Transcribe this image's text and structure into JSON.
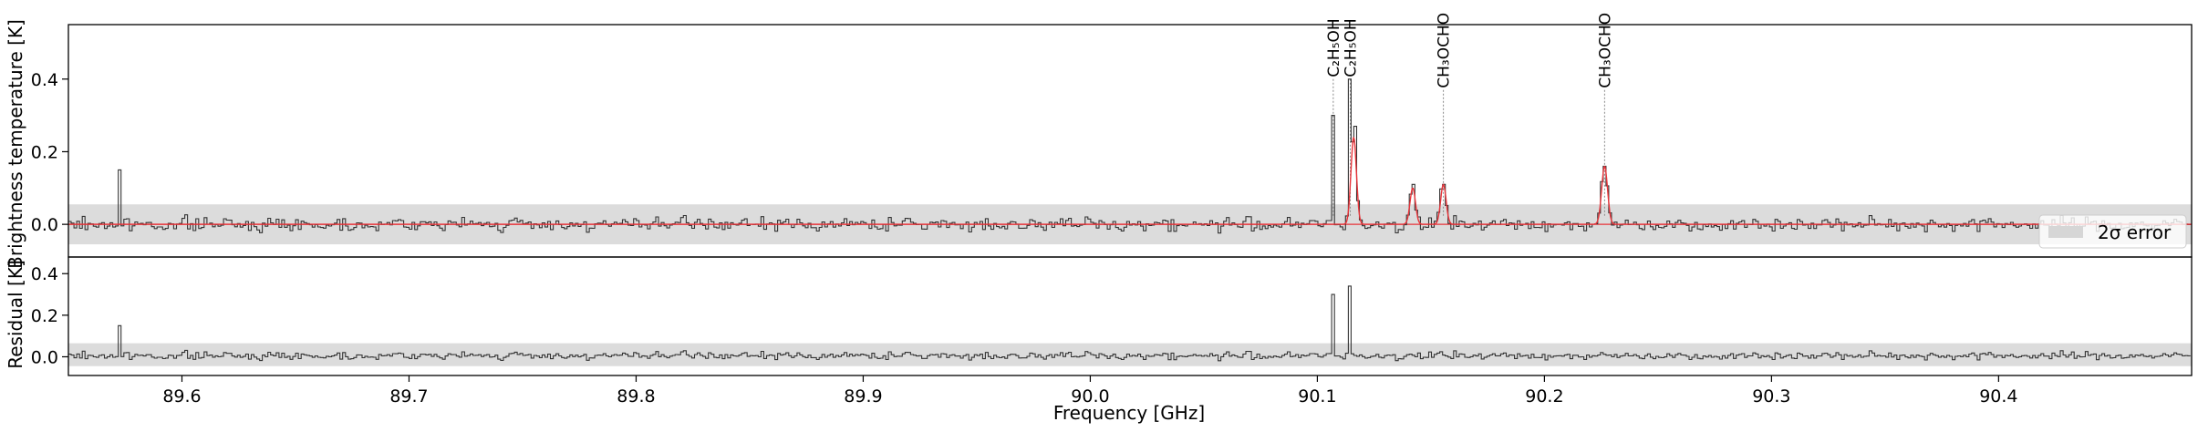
{
  "chart_data": {
    "type": "line",
    "xlabel": "Frequency [GHz]",
    "xlim": [
      89.55,
      90.485
    ],
    "xticks": [
      "89.6",
      "89.7",
      "89.8",
      "89.9",
      "90.0",
      "90.1",
      "90.2",
      "90.3",
      "90.4"
    ],
    "xtick_values": [
      89.6,
      89.7,
      89.8,
      89.9,
      90.0,
      90.1,
      90.2,
      90.3,
      90.4
    ],
    "top_panel": {
      "ylabel": "Brightness temperature [K]",
      "ylim": [
        -0.09,
        0.55
      ],
      "yticks": [
        "0.0",
        "0.2",
        "0.4"
      ],
      "ytick_values": [
        0.0,
        0.2,
        0.4
      ],
      "error_band": [
        -0.055,
        0.055
      ],
      "series": [
        {
          "kind": "observed-step",
          "color": "#333333"
        },
        {
          "kind": "model",
          "color": "#e8343a"
        }
      ],
      "features": [
        {
          "freq": 89.573,
          "peak": 0.15
        },
        {
          "freq": 90.1065,
          "peak": 0.3
        },
        {
          "freq": 90.1145,
          "peak": 0.4
        },
        {
          "freq": 90.1165,
          "peak": 0.27
        },
        {
          "freq": 90.1425,
          "peak": 0.11
        },
        {
          "freq": 90.1555,
          "peak": 0.11
        },
        {
          "freq": 90.2265,
          "peak": 0.16
        }
      ],
      "model_peaks": [
        {
          "freq": 90.116,
          "amp": 0.24,
          "width": 0.0012
        },
        {
          "freq": 90.142,
          "amp": 0.1,
          "width": 0.0012
        },
        {
          "freq": 90.1555,
          "amp": 0.11,
          "width": 0.0012
        },
        {
          "freq": 90.2265,
          "amp": 0.16,
          "width": 0.0013
        }
      ],
      "line_ids": [
        {
          "freq": 90.107,
          "label": "C₂H₅OH",
          "text_y": 0.4
        },
        {
          "freq": 90.1145,
          "label": "C₂H₅OH",
          "text_y": 0.4
        },
        {
          "freq": 90.1555,
          "label": "CH₃OCHO",
          "text_y": 0.37
        },
        {
          "freq": 90.2265,
          "label": "CH₃OCHO",
          "text_y": 0.37
        }
      ],
      "legend": {
        "label": "2σ error",
        "placement": "lower-right"
      }
    },
    "bottom_panel": {
      "ylabel": "Residual [K]",
      "ylim": [
        -0.09,
        0.48
      ],
      "yticks": [
        "0.0",
        "0.2",
        "0.4"
      ],
      "ytick_values": [
        0.0,
        0.2,
        0.4
      ],
      "error_band": [
        -0.045,
        0.065
      ],
      "series": [
        {
          "kind": "residual-step",
          "color": "#333333"
        }
      ],
      "features": [
        {
          "freq": 89.573,
          "peak": 0.15
        },
        {
          "freq": 90.1065,
          "peak": 0.3
        },
        {
          "freq": 90.1145,
          "peak": 0.34
        }
      ]
    },
    "grid": false,
    "channel_width_ghz": 0.00122
  }
}
